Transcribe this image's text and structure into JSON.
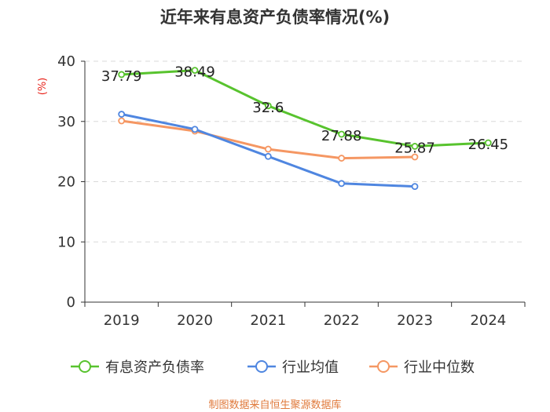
{
  "chart_data": {
    "type": "line",
    "title": "近年来有息资产负债率情况(%)",
    "unit": "(%)",
    "categories": [
      "2019",
      "2020",
      "2021",
      "2022",
      "2023",
      "2024"
    ],
    "ylim": [
      0,
      40
    ],
    "yticks": [
      0,
      10,
      20,
      30,
      40
    ],
    "grid": true,
    "legend_position": "bottom",
    "series": [
      {
        "name": "有息资产负债率",
        "color": "#58c32e",
        "values": [
          37.79,
          38.49,
          32.6,
          27.88,
          25.87,
          26.45
        ],
        "labels": [
          "37.79",
          "38.49",
          "32.6",
          "27.88",
          "25.87",
          "26.45"
        ]
      },
      {
        "name": "行业均值",
        "color": "#4f86e0",
        "values": [
          31.2,
          28.7,
          24.2,
          19.7,
          19.2,
          null
        ]
      },
      {
        "name": "行业中位数",
        "color": "#f59763",
        "values": [
          30.1,
          28.4,
          25.4,
          23.9,
          24.1,
          null
        ]
      }
    ]
  },
  "source": "制图数据来自恒生聚源数据库"
}
